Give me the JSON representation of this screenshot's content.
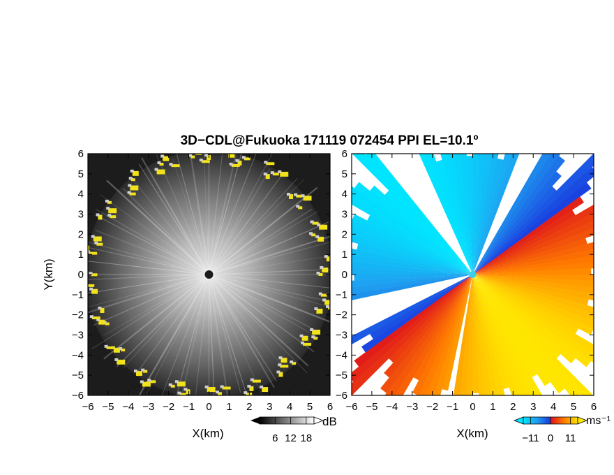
{
  "title": "3D−CDL@Fukuoka 171119 072454 PPI EL=10.1º",
  "chart_data": [
    {
      "type": "heatmap",
      "panel": "left",
      "quantity": "SNR",
      "xlabel": "X(km)",
      "ylabel": "Y(km)",
      "xlim": [
        -6,
        6
      ],
      "ylim": [
        -6,
        6
      ],
      "xticks": [
        -6,
        -5,
        -4,
        -3,
        -2,
        -1,
        0,
        1,
        2,
        3,
        4,
        5,
        6
      ],
      "yticks": [
        -6,
        -5,
        -4,
        -3,
        -2,
        -1,
        0,
        1,
        2,
        3,
        4,
        5,
        6
      ],
      "xtick_labels": [
        "−6",
        "−5",
        "−4",
        "−3",
        "−2",
        "−1",
        "0",
        "1",
        "2",
        "3",
        "4",
        "5",
        "6"
      ],
      "ytick_labels": [
        "−6",
        "−5",
        "−4",
        "−3",
        "−2",
        "−1",
        "0",
        "1",
        "2",
        "3",
        "4",
        "5",
        "6"
      ],
      "colorbar": {
        "unit": "dB",
        "ticks": [
          6,
          12,
          18
        ],
        "tick_labels": [
          "6",
          "12",
          "18"
        ],
        "range": [
          0,
          21
        ],
        "colors": [
          "#000000",
          "#ffffff"
        ],
        "extend": "both"
      },
      "highlight_color": "#f2e21a",
      "grid": false
    },
    {
      "type": "heatmap",
      "panel": "right",
      "quantity": "radial velocity",
      "xlabel": "X(km)",
      "ylabel": "",
      "xlim": [
        -6,
        6
      ],
      "ylim": [
        -6,
        6
      ],
      "xticks": [
        -6,
        -5,
        -4,
        -3,
        -2,
        -1,
        0,
        1,
        2,
        3,
        4,
        5,
        6
      ],
      "yticks": [
        -6,
        -5,
        -4,
        -3,
        -2,
        -1,
        0,
        1,
        2,
        3,
        4,
        5,
        6
      ],
      "xtick_labels": [
        "−6",
        "−5",
        "−4",
        "−3",
        "−2",
        "−1",
        "0",
        "1",
        "2",
        "3",
        "4",
        "5",
        "6"
      ],
      "ytick_labels": [
        "−6",
        "−5",
        "−4",
        "−3",
        "−2",
        "−1",
        "0",
        "1",
        "2",
        "3",
        "4",
        "5",
        "6"
      ],
      "colorbar": {
        "unit": "ms⁻¹",
        "ticks": [
          -11,
          0,
          11
        ],
        "tick_labels": [
          "−11",
          "0",
          "11"
        ],
        "range": [
          -15,
          15
        ],
        "colors": [
          "#00e5ff",
          "#1f9ff0",
          "#1a3fe0",
          "#e01a1a",
          "#ff7a00",
          "#ffe600"
        ],
        "extend": "both"
      },
      "grid": false
    }
  ]
}
